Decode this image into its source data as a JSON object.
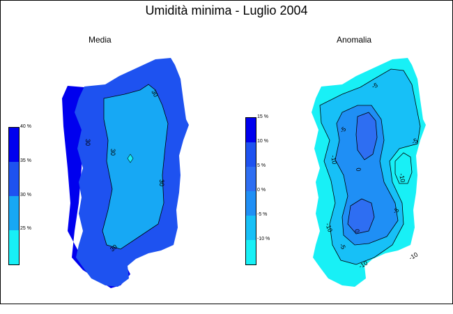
{
  "title": "Umidità minima - Luglio 2004",
  "maps": {
    "media": {
      "label": "Media",
      "legend": {
        "colors": [
          "#0000ee",
          "#1e52f0",
          "#17a8f4",
          "#18f0f6"
        ],
        "labels": [
          "40 %",
          "35 %",
          "30 %",
          "25 %"
        ]
      },
      "contours": [
        "30",
        "30",
        "30",
        "30",
        "30"
      ]
    },
    "anomalia": {
      "label": "Anomalia",
      "legend": {
        "colors": [
          "#0000ee",
          "#1e52f0",
          "#2e6ef2",
          "#1f8ff5",
          "#17c0f7",
          "#18f0f6"
        ],
        "labels": [
          "15 %",
          "10 %",
          "5 %",
          "0 %",
          "-5 %",
          "-10 %"
        ]
      },
      "contours": [
        "-5",
        "-5",
        "-10",
        "-5",
        "0",
        "0",
        "-10",
        "-10",
        "-5",
        "-10",
        "-10",
        "-5"
      ]
    }
  }
}
